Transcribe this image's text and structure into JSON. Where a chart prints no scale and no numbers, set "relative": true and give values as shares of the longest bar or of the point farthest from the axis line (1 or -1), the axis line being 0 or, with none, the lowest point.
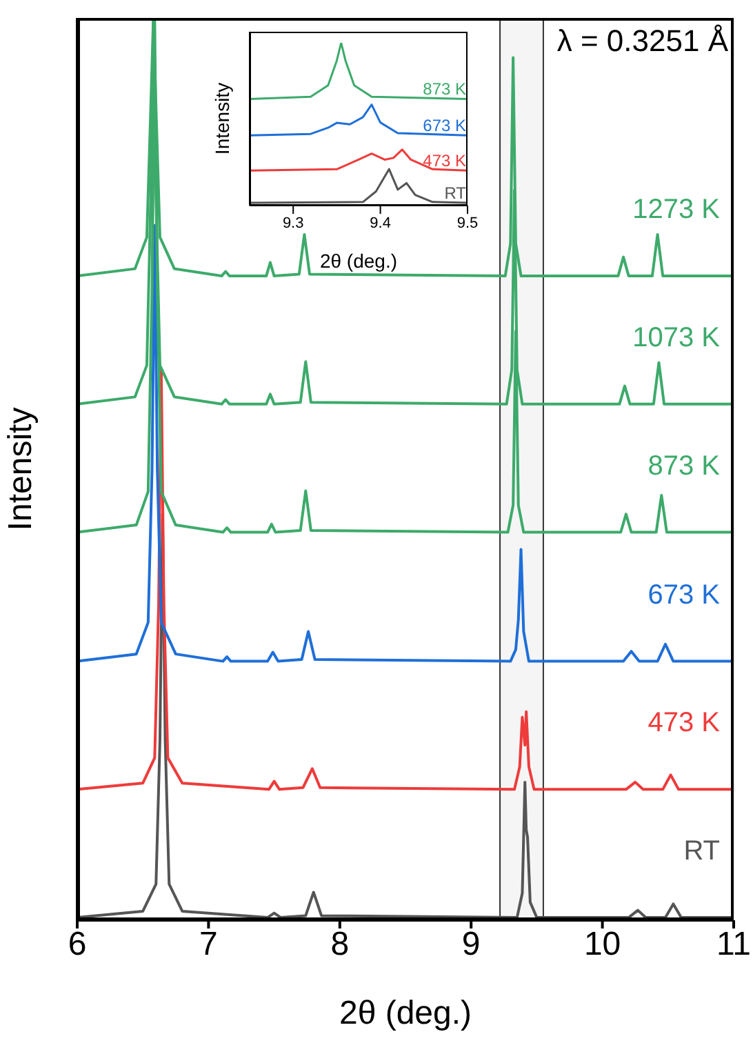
{
  "chart_data": [
    {
      "type": "line",
      "xlabel": "2θ (deg.)",
      "ylabel": "Intensity",
      "relative": true,
      "xlim": [
        6,
        11
      ],
      "xticks": [
        6,
        7,
        8,
        9,
        10,
        11
      ],
      "tick_labels": "x",
      "marker": "none",
      "data_labels": false,
      "annotations": [
        "λ = 0.3251 Å"
      ],
      "bands": [
        {
          "axis": "x",
          "from": 9.22,
          "to": 9.55,
          "color": "#333333"
        }
      ],
      "series": [
        {
          "name": "RT",
          "color": "#555555",
          "x": [
            6,
            6.5,
            6.6,
            6.63,
            6.65,
            6.67,
            6.7,
            6.8,
            7.45,
            7.5,
            7.55,
            7.74,
            7.8,
            7.86,
            9.35,
            9.39,
            9.41,
            9.42,
            9.43,
            9.45,
            9.5,
            10.2,
            10.27,
            10.33,
            10.48,
            10.54,
            10.6,
            11
          ],
          "values": [
            0.003,
            0.01,
            0.04,
            0.2,
            0.45,
            0.2,
            0.04,
            0.01,
            0.003,
            0.008,
            0.003,
            0.005,
            0.031,
            0.005,
            0.003,
            0.03,
            0.153,
            0.1,
            0.092,
            0.02,
            0.003,
            0.003,
            0.011,
            0.003,
            0.003,
            0.018,
            0.003,
            0.003
          ]
        },
        {
          "name": "473 K",
          "color": "#ee3b3b",
          "x": [
            6,
            6.5,
            6.59,
            6.62,
            6.64,
            6.66,
            6.69,
            6.8,
            7.46,
            7.5,
            7.54,
            7.72,
            7.79,
            7.85,
            9.33,
            9.37,
            9.39,
            9.41,
            9.42,
            9.44,
            9.48,
            10.18,
            10.25,
            10.31,
            10.46,
            10.52,
            10.58,
            11
          ],
          "values": [
            0.145,
            0.152,
            0.18,
            0.35,
            0.61,
            0.35,
            0.18,
            0.152,
            0.145,
            0.154,
            0.145,
            0.147,
            0.168,
            0.147,
            0.145,
            0.17,
            0.225,
            0.194,
            0.231,
            0.17,
            0.145,
            0.145,
            0.153,
            0.145,
            0.145,
            0.161,
            0.145,
            0.145
          ]
        },
        {
          "name": "673 K",
          "color": "#1f6fd8",
          "x": [
            6,
            6.45,
            6.54,
            6.57,
            6.59,
            6.61,
            6.64,
            6.75,
            7.11,
            7.14,
            7.17,
            7.45,
            7.49,
            7.53,
            7.71,
            7.76,
            7.81,
            9.3,
            9.34,
            9.36,
            9.38,
            9.4,
            9.44,
            10.16,
            10.22,
            10.28,
            10.42,
            10.48,
            10.54,
            11
          ],
          "values": [
            0.287,
            0.295,
            0.33,
            0.5,
            0.77,
            0.5,
            0.33,
            0.295,
            0.287,
            0.292,
            0.287,
            0.287,
            0.297,
            0.287,
            0.289,
            0.32,
            0.289,
            0.287,
            0.3,
            0.333,
            0.411,
            0.32,
            0.287,
            0.287,
            0.298,
            0.287,
            0.287,
            0.306,
            0.287,
            0.287
          ]
        },
        {
          "name": "873 K",
          "color": "#3daa6b",
          "x": [
            6,
            6.45,
            6.54,
            6.57,
            6.59,
            6.61,
            6.64,
            6.75,
            7.11,
            7.14,
            7.17,
            7.45,
            7.48,
            7.51,
            7.7,
            7.74,
            7.78,
            9.28,
            9.32,
            9.34,
            9.36,
            9.4,
            10.14,
            10.18,
            10.22,
            10.41,
            10.45,
            10.49,
            11
          ],
          "values": [
            0.43,
            0.438,
            0.475,
            0.7,
            1,
            0.7,
            0.475,
            0.438,
            0.43,
            0.435,
            0.43,
            0.43,
            0.439,
            0.43,
            0.432,
            0.476,
            0.432,
            0.43,
            0.46,
            0.653,
            0.46,
            0.43,
            0.43,
            0.45,
            0.43,
            0.43,
            0.471,
            0.43,
            0.43
          ]
        },
        {
          "name": "1073 K",
          "color": "#3daa6b",
          "x": [
            6,
            6.44,
            6.53,
            6.56,
            6.58,
            6.6,
            6.63,
            6.74,
            7.1,
            7.13,
            7.16,
            7.44,
            7.47,
            7.5,
            7.7,
            7.74,
            7.78,
            9.27,
            9.31,
            9.33,
            9.35,
            9.39,
            10.13,
            10.17,
            10.21,
            10.39,
            10.43,
            10.47,
            11
          ],
          "values": [
            0.572,
            0.58,
            0.615,
            0.8,
            1,
            0.8,
            0.615,
            0.58,
            0.572,
            0.577,
            0.572,
            0.572,
            0.583,
            0.572,
            0.574,
            0.619,
            0.574,
            0.572,
            0.61,
            0.809,
            0.61,
            0.572,
            0.572,
            0.592,
            0.572,
            0.572,
            0.618,
            0.572,
            0.572
          ]
        },
        {
          "name": "1273 K",
          "color": "#3daa6b",
          "x": [
            6,
            6.44,
            6.53,
            6.56,
            6.58,
            6.6,
            6.63,
            6.74,
            7.1,
            7.13,
            7.16,
            7.44,
            7.47,
            7.5,
            7.69,
            7.73,
            7.77,
            9.26,
            9.3,
            9.32,
            9.34,
            9.38,
            10.12,
            10.16,
            10.2,
            10.38,
            10.42,
            10.46,
            11
          ],
          "values": [
            0.714,
            0.722,
            0.757,
            0.9,
            1,
            0.9,
            0.757,
            0.722,
            0.714,
            0.719,
            0.714,
            0.714,
            0.729,
            0.714,
            0.716,
            0.76,
            0.716,
            0.714,
            0.75,
            0.956,
            0.75,
            0.714,
            0.714,
            0.735,
            0.714,
            0.714,
            0.76,
            0.714,
            0.714
          ]
        }
      ]
    },
    {
      "type": "line",
      "xlabel": "2θ (deg.)",
      "ylabel": "Intensity",
      "relative": true,
      "xlim": [
        9.25,
        9.5
      ],
      "xticks": [
        9.3,
        9.4,
        9.5
      ],
      "tick_labels": "x",
      "marker": "none",
      "series": [
        {
          "name": "RT",
          "color": "#555555",
          "x": [
            9.25,
            9.38,
            9.395,
            9.41,
            9.42,
            9.43,
            9.44,
            9.46,
            9.5
          ],
          "values": [
            0.017,
            0.022,
            0.087,
            0.224,
            0.098,
            0.138,
            0.065,
            0.022,
            0.017
          ]
        },
        {
          "name": "473 K",
          "color": "#ee3b3b",
          "x": [
            9.25,
            9.35,
            9.375,
            9.39,
            9.405,
            9.415,
            9.425,
            9.435,
            9.46,
            9.5
          ],
          "values": [
            0.215,
            0.223,
            0.282,
            0.319,
            0.282,
            0.293,
            0.344,
            0.282,
            0.223,
            0.215
          ]
        },
        {
          "name": "673 K",
          "color": "#1f6fd8",
          "x": [
            9.25,
            9.32,
            9.34,
            9.35,
            9.365,
            9.38,
            9.39,
            9.4,
            9.42,
            9.5
          ],
          "values": [
            0.431,
            0.44,
            0.478,
            0.508,
            0.499,
            0.543,
            0.62,
            0.51,
            0.445,
            0.431
          ]
        },
        {
          "name": "873 K",
          "color": "#3daa6b",
          "x": [
            9.25,
            9.32,
            9.34,
            9.35,
            9.355,
            9.36,
            9.37,
            9.39,
            9.5
          ],
          "values": [
            0.655,
            0.668,
            0.738,
            0.89,
            1,
            0.89,
            0.738,
            0.668,
            0.655
          ]
        }
      ]
    }
  ]
}
